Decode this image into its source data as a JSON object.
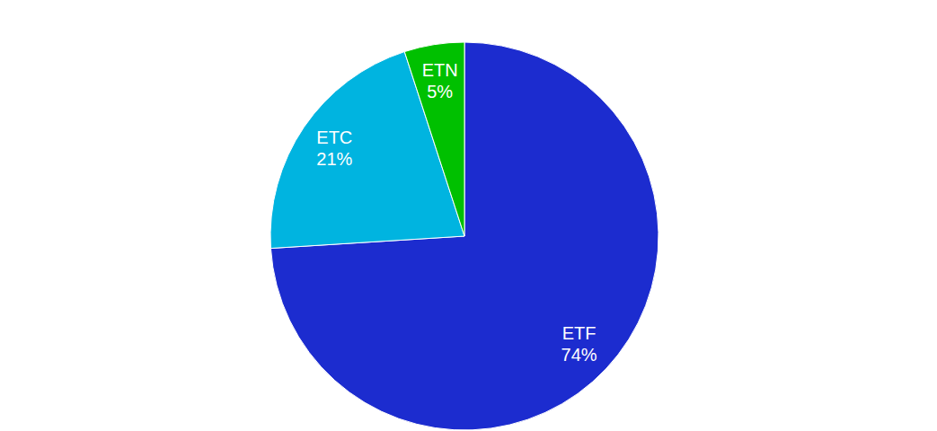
{
  "chart_data": {
    "type": "pie",
    "categories": [
      "ETF",
      "ETC",
      "ETN"
    ],
    "values": [
      74,
      21,
      5
    ],
    "value_labels": [
      "74%",
      "21%",
      "5%"
    ],
    "colors": [
      "#1c2ccf",
      "#00b4e0",
      "#00c000"
    ],
    "data_labels": true
  }
}
